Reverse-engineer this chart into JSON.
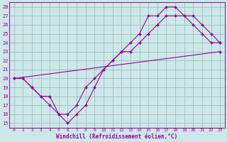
{
  "xlabel": "Windchill (Refroidissement éolien,°C)",
  "bg_color": "#cde8e8",
  "line_color": "#990099",
  "grid_color": "#9dbdbd",
  "xlim": [
    -0.5,
    23.5
  ],
  "ylim": [
    14.5,
    28.5
  ],
  "xticks": [
    0,
    1,
    2,
    3,
    4,
    5,
    6,
    7,
    8,
    9,
    10,
    11,
    12,
    13,
    14,
    15,
    16,
    17,
    18,
    19,
    20,
    21,
    22,
    23
  ],
  "yticks": [
    15,
    16,
    17,
    18,
    19,
    20,
    21,
    22,
    23,
    24,
    25,
    26,
    27,
    28
  ],
  "series": [
    {
      "x": [
        0,
        1,
        2,
        3,
        4,
        5,
        6,
        7,
        8,
        9,
        10,
        11,
        12,
        13,
        14,
        15,
        16,
        17,
        18,
        19,
        20,
        21,
        22,
        23
      ],
      "y": [
        20,
        20,
        19,
        18,
        18,
        16,
        15,
        16,
        17,
        19,
        21,
        22,
        23,
        24,
        25,
        27,
        27,
        28,
        28,
        27,
        26,
        25,
        24,
        24
      ]
    },
    {
      "x": [
        0,
        1,
        2,
        3,
        4,
        5,
        6,
        7,
        8,
        9,
        10,
        11,
        12,
        13,
        14,
        15,
        16,
        17,
        18,
        19,
        20,
        21,
        22,
        23
      ],
      "y": [
        20,
        20,
        19,
        18,
        17,
        16,
        16,
        17,
        19,
        20,
        21,
        22,
        23,
        23,
        24,
        25,
        26,
        27,
        27,
        27,
        27,
        26,
        25,
        24
      ]
    },
    {
      "x": [
        0,
        23
      ],
      "y": [
        20,
        23
      ]
    }
  ]
}
